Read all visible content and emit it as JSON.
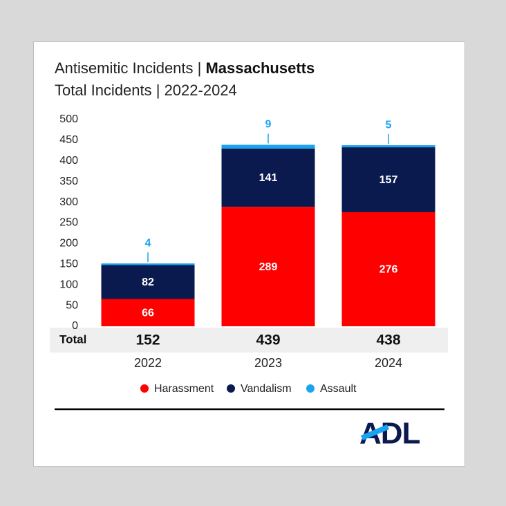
{
  "chart_data": {
    "type": "stacked_bar",
    "title": "Antisemitic Incidents |",
    "title_bold": "Massachusetts",
    "subtitle": "Total Incidents | 2022-2024",
    "categories": [
      "2022",
      "2023",
      "2024"
    ],
    "series": [
      {
        "name": "Harassment",
        "color": "#ff0000",
        "values": [
          66,
          289,
          276
        ]
      },
      {
        "name": "Vandalism",
        "color": "#0b1a4e",
        "values": [
          82,
          141,
          157
        ]
      },
      {
        "name": "Assault",
        "color": "#1aa3f0",
        "values": [
          4,
          9,
          5
        ]
      }
    ],
    "total_label": "Total",
    "totals": [
      152,
      439,
      438
    ],
    "ylim": [
      0,
      500
    ],
    "yticks": [
      0,
      50,
      100,
      150,
      200,
      250,
      300,
      350,
      400,
      450,
      500
    ],
    "grid": false,
    "legend": "bottom",
    "logo": "ADL"
  }
}
